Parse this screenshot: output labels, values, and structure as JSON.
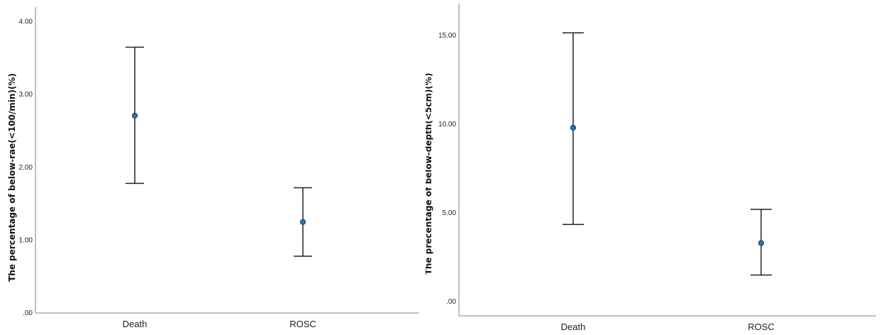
{
  "chart_data": [
    {
      "type": "errorbar",
      "title": "",
      "xlabel": "",
      "ylabel": "The percentage of below-rae(<100/min)(%)",
      "ylim": [
        0,
        4.2
      ],
      "yticks": [
        0,
        1,
        2,
        3,
        4
      ],
      "ytick_labels": [
        ".00",
        "1.00",
        "2.00",
        "3.00",
        "4.00"
      ],
      "categories": [
        "Death",
        "ROSC"
      ],
      "mean": [
        2.71,
        1.25
      ],
      "lower": [
        1.78,
        0.78
      ],
      "upper": [
        3.65,
        1.72
      ],
      "point_color": "#1f77b4"
    },
    {
      "type": "errorbar",
      "title": "",
      "xlabel": "",
      "ylabel": "The precentage of below-depth(<5cm)(%)",
      "ylim": [
        -0.8,
        16.8
      ],
      "yticks": [
        0,
        5,
        10,
        15
      ],
      "ytick_labels": [
        ".00",
        "5.00",
        "10.00",
        "15.00"
      ],
      "categories": [
        "Death",
        "ROSC"
      ],
      "mean": [
        9.8,
        3.3
      ],
      "lower": [
        4.35,
        1.5
      ],
      "upper": [
        15.15,
        5.2
      ],
      "point_color": "#1f77b4"
    }
  ]
}
